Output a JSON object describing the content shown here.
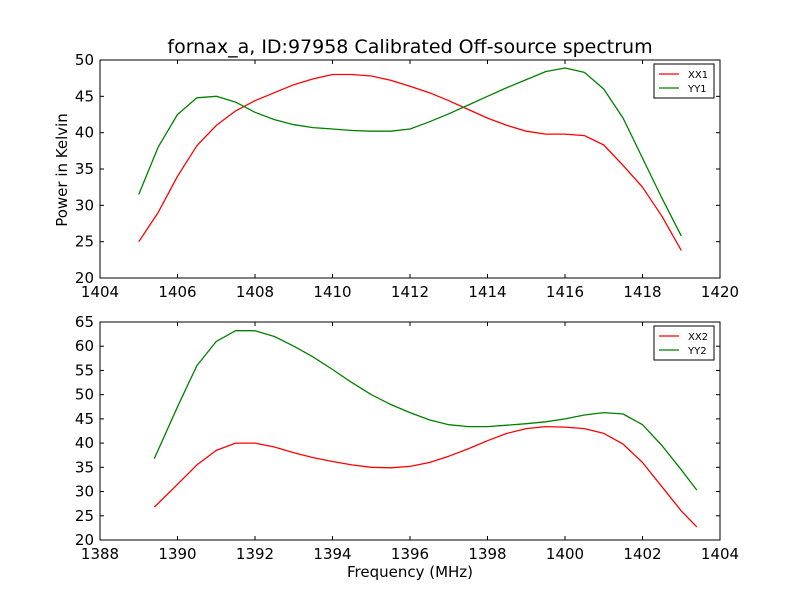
{
  "figure_title": "fornax_a, ID:97958 Calibrated Off-source spectrum",
  "ylabel": "Power in Kelvin",
  "xlabel": "Frequency (MHz)",
  "colors": {
    "red": "#ff0000",
    "green": "#008000"
  },
  "chart_data": [
    {
      "type": "line",
      "title": "fornax_a, ID:97958 Calibrated Off-source spectrum",
      "ylabel": "Power in Kelvin",
      "xlabel": "",
      "xlim": [
        1404,
        1420
      ],
      "ylim": [
        20,
        50
      ],
      "xticks": [
        "1404",
        "1406",
        "1408",
        "1410",
        "1412",
        "1414",
        "1416",
        "1418",
        "1420"
      ],
      "yticks": [
        "20",
        "25",
        "30",
        "35",
        "40",
        "45",
        "50"
      ],
      "legend_position": "top-right",
      "grid": false,
      "series": [
        {
          "name": "XX1",
          "color": "#ff0000",
          "points": [
            [
              1405,
              25.0
            ],
            [
              1405.5,
              29.0
            ],
            [
              1406,
              34.0
            ],
            [
              1406.5,
              38.2
            ],
            [
              1407,
              41.0
            ],
            [
              1407.5,
              43.0
            ],
            [
              1408,
              44.4
            ],
            [
              1408.5,
              45.5
            ],
            [
              1409,
              46.6
            ],
            [
              1409.5,
              47.4
            ],
            [
              1410,
              48.0
            ],
            [
              1410.5,
              48.0
            ],
            [
              1411,
              47.8
            ],
            [
              1411.5,
              47.2
            ],
            [
              1412,
              46.4
            ],
            [
              1412.5,
              45.5
            ],
            [
              1413,
              44.4
            ],
            [
              1413.5,
              43.2
            ],
            [
              1414,
              42.0
            ],
            [
              1414.5,
              41.0
            ],
            [
              1415,
              40.2
            ],
            [
              1415.5,
              39.8
            ],
            [
              1416,
              39.8
            ],
            [
              1416.5,
              39.6
            ],
            [
              1417,
              38.3
            ],
            [
              1417.5,
              35.5
            ],
            [
              1418,
              32.5
            ],
            [
              1418.5,
              28.5
            ],
            [
              1419,
              23.8
            ]
          ]
        },
        {
          "name": "YY1",
          "color": "#008000",
          "points": [
            [
              1405,
              31.5
            ],
            [
              1405.5,
              38.0
            ],
            [
              1406,
              42.5
            ],
            [
              1406.5,
              44.8
            ],
            [
              1407,
              45.0
            ],
            [
              1407.5,
              44.2
            ],
            [
              1408,
              42.8
            ],
            [
              1408.5,
              41.8
            ],
            [
              1409,
              41.1
            ],
            [
              1409.5,
              40.7
            ],
            [
              1410,
              40.5
            ],
            [
              1410.5,
              40.3
            ],
            [
              1411,
              40.2
            ],
            [
              1411.5,
              40.2
            ],
            [
              1412,
              40.5
            ],
            [
              1412.5,
              41.5
            ],
            [
              1413,
              42.6
            ],
            [
              1413.5,
              43.8
            ],
            [
              1414,
              45.0
            ],
            [
              1414.5,
              46.2
            ],
            [
              1415,
              47.3
            ],
            [
              1415.5,
              48.4
            ],
            [
              1416,
              48.9
            ],
            [
              1416.5,
              48.3
            ],
            [
              1417,
              46.0
            ],
            [
              1417.5,
              42.0
            ],
            [
              1418,
              36.5
            ],
            [
              1418.5,
              31.0
            ],
            [
              1419,
              25.8
            ]
          ]
        }
      ]
    },
    {
      "type": "line",
      "title": "",
      "ylabel": "",
      "xlabel": "Frequency (MHz)",
      "xlim": [
        1388,
        1404
      ],
      "ylim": [
        20,
        65
      ],
      "xticks": [
        "1388",
        "1390",
        "1392",
        "1394",
        "1396",
        "1398",
        "1400",
        "1402",
        "1404"
      ],
      "yticks": [
        "20",
        "25",
        "30",
        "35",
        "40",
        "45",
        "50",
        "55",
        "60",
        "65"
      ],
      "legend_position": "top-right",
      "grid": false,
      "series": [
        {
          "name": "XX2",
          "color": "#ff0000",
          "points": [
            [
              1389.4,
              26.8
            ],
            [
              1390,
              31.5
            ],
            [
              1390.5,
              35.5
            ],
            [
              1391,
              38.5
            ],
            [
              1391.5,
              40.0
            ],
            [
              1392,
              40.0
            ],
            [
              1392.5,
              39.2
            ],
            [
              1393,
              38.0
            ],
            [
              1393.5,
              37.0
            ],
            [
              1394,
              36.2
            ],
            [
              1394.5,
              35.5
            ],
            [
              1395,
              35.0
            ],
            [
              1395.5,
              34.9
            ],
            [
              1396,
              35.2
            ],
            [
              1396.5,
              36.0
            ],
            [
              1397,
              37.3
            ],
            [
              1397.5,
              38.8
            ],
            [
              1398,
              40.5
            ],
            [
              1398.5,
              42.0
            ],
            [
              1399,
              43.0
            ],
            [
              1399.5,
              43.4
            ],
            [
              1400,
              43.3
            ],
            [
              1400.5,
              43.0
            ],
            [
              1401,
              42.0
            ],
            [
              1401.5,
              39.8
            ],
            [
              1402,
              36.0
            ],
            [
              1402.5,
              31.0
            ],
            [
              1403,
              26.0
            ],
            [
              1403.4,
              22.7
            ]
          ]
        },
        {
          "name": "YY2",
          "color": "#008000",
          "points": [
            [
              1389.4,
              36.8
            ],
            [
              1390,
              47.5
            ],
            [
              1390.5,
              56.0
            ],
            [
              1391,
              61.0
            ],
            [
              1391.5,
              63.2
            ],
            [
              1392,
              63.2
            ],
            [
              1392.5,
              62.0
            ],
            [
              1393,
              60.0
            ],
            [
              1393.5,
              57.8
            ],
            [
              1394,
              55.2
            ],
            [
              1394.5,
              52.5
            ],
            [
              1395,
              50.0
            ],
            [
              1395.5,
              48.0
            ],
            [
              1396,
              46.3
            ],
            [
              1396.5,
              44.8
            ],
            [
              1397,
              43.8
            ],
            [
              1397.5,
              43.4
            ],
            [
              1398,
              43.4
            ],
            [
              1398.5,
              43.7
            ],
            [
              1399,
              44.0
            ],
            [
              1399.5,
              44.4
            ],
            [
              1400,
              45.0
            ],
            [
              1400.5,
              45.8
            ],
            [
              1401,
              46.3
            ],
            [
              1401.5,
              46.0
            ],
            [
              1402,
              43.8
            ],
            [
              1402.5,
              39.5
            ],
            [
              1403,
              34.5
            ],
            [
              1403.4,
              30.3
            ]
          ]
        }
      ]
    }
  ]
}
